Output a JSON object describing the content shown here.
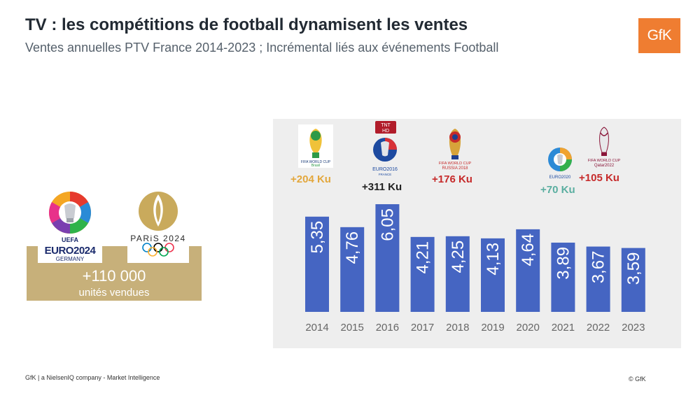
{
  "header": {
    "title": "TV : les compétitions de football dynamisent les ventes",
    "subtitle": "Ventes annuelles PTV France 2014-2023 ; Incrémental liés aux événements Football"
  },
  "brand": {
    "logo_text": "GfK",
    "color": "#ef7d31"
  },
  "side_card": {
    "euro_logo": {
      "line1": "UEFA",
      "line2": "EURO2024",
      "line3": "GERMANY"
    },
    "paris_logo": {
      "text": "PARiS 2024"
    },
    "value": "+110 000",
    "caption": "unités vendues",
    "color": "#c7b07a"
  },
  "events": [
    {
      "year": "2014",
      "logo_caption": "FIFA WORLD CUP Brasil",
      "label": "+204 Ku",
      "color": "#e3a73c"
    },
    {
      "year": "2016",
      "logo_caption": "EURO2016 FRANCE",
      "badge": "TNT HD",
      "label": "+311 Ku",
      "color": "#222222"
    },
    {
      "year": "2018",
      "logo_caption": "FIFA WORLD CUP RUSSIA 2018",
      "label": "+176 Ku",
      "color": "#c62a2a"
    },
    {
      "year": "2021",
      "logo_caption": "EURO2020",
      "label": "+70 Ku",
      "color": "#5aaea0"
    },
    {
      "year": "2022",
      "logo_caption": "FIFA WORLD CUP Qatar2022",
      "label": "+105 Ku",
      "color": "#c62a2a"
    }
  ],
  "chart_data": {
    "type": "bar",
    "categories": [
      "2014",
      "2015",
      "2016",
      "2017",
      "2018",
      "2019",
      "2020",
      "2021",
      "2022",
      "2023"
    ],
    "values": [
      5.35,
      4.76,
      6.05,
      4.21,
      4.25,
      4.13,
      4.64,
      3.89,
      3.67,
      3.59
    ],
    "value_labels": [
      "5,35",
      "4,76",
      "6,05",
      "4,21",
      "4,25",
      "4,13",
      "4,64",
      "3,89",
      "3,67",
      "3,59"
    ],
    "title": "",
    "xlabel": "",
    "ylabel": "",
    "ylim": [
      0,
      6.05
    ],
    "bar_color": "#4565c2",
    "grid": false,
    "legend": "none"
  },
  "footer": {
    "left": "GfK | a NielsenIQ company  -  Market Intelligence",
    "right": "© GfK"
  }
}
